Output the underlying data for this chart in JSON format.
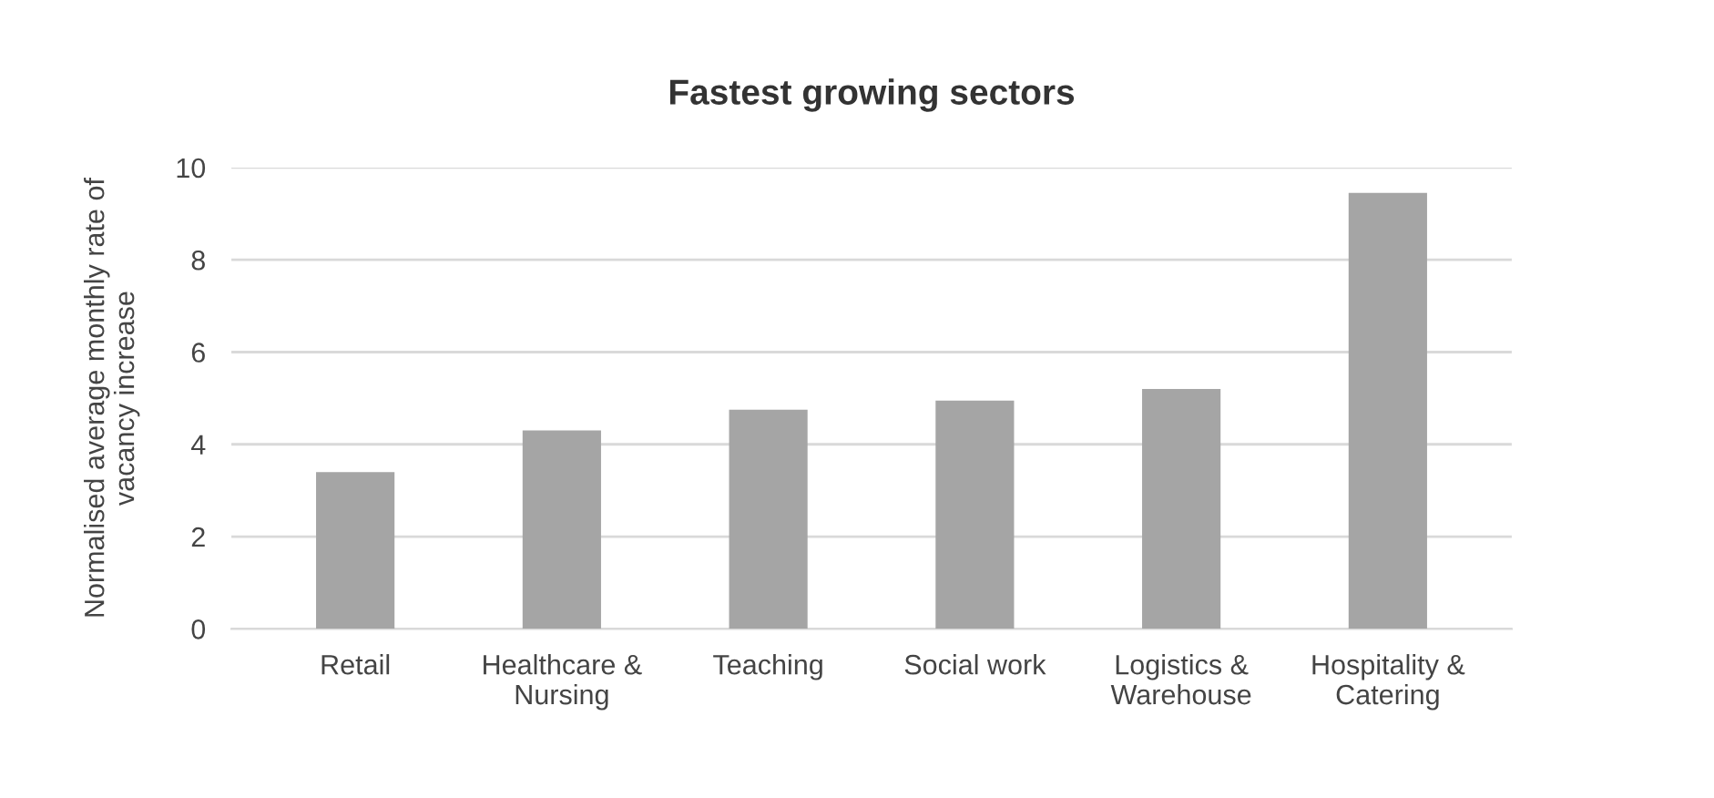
{
  "chart_data": {
    "type": "bar",
    "title": "Fastest growing sectors",
    "ylabel": "Normalised average monthly rate of\nvacancy increase",
    "categories": [
      "Retail",
      "Healthcare &\nNursing",
      "Teaching",
      "Social work",
      "Logistics &\nWarehouse",
      "Hospitality &\nCatering"
    ],
    "values": [
      3.4,
      4.3,
      4.75,
      4.95,
      5.2,
      9.45
    ],
    "color": "#a5a5a5",
    "ylim": [
      0,
      10
    ],
    "yticks": [
      0,
      2,
      4,
      6,
      8,
      10
    ],
    "grid": "y",
    "legend": false
  }
}
